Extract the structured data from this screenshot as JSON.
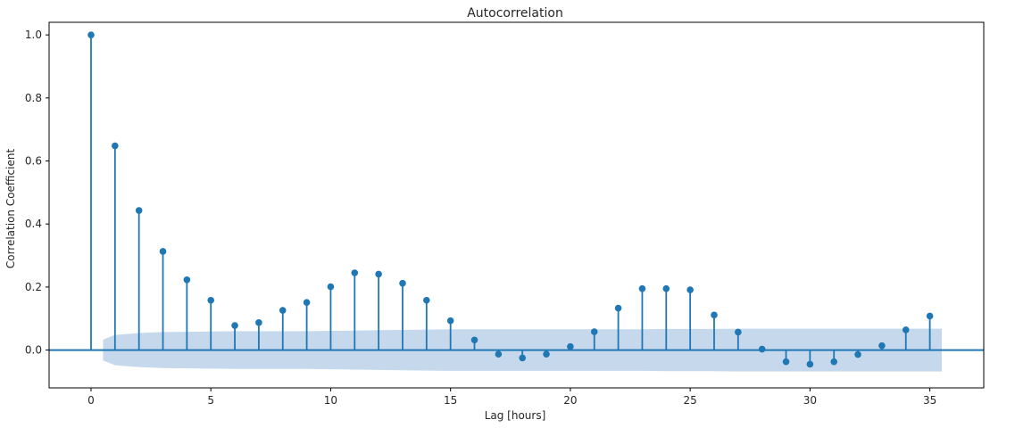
{
  "chart_data": {
    "type": "scatter",
    "subtype": "stem",
    "title": "Autocorrelation",
    "xlabel": "Lag [hours]",
    "ylabel": "Correlation Coefficient",
    "xlim": [
      -1.75,
      37.25
    ],
    "ylim": [
      -0.12,
      1.04
    ],
    "x_ticks": [
      0,
      5,
      10,
      15,
      20,
      25,
      30,
      35
    ],
    "y_ticks": [
      0.0,
      0.2,
      0.4,
      0.6,
      0.8,
      1.0
    ],
    "y_tick_labels": [
      "0.0",
      "0.2",
      "0.4",
      "0.6",
      "0.8",
      "1.0"
    ],
    "grid": false,
    "colors": {
      "series": "#1f77b4",
      "band": "#c6d9ec",
      "axis": "#000000"
    },
    "series": [
      {
        "x": [
          0,
          1,
          2,
          3,
          4,
          5,
          6,
          7,
          8,
          9,
          10,
          11,
          12,
          13,
          14,
          15,
          16,
          17,
          18,
          19,
          20,
          21,
          22,
          23,
          24,
          25,
          26,
          27,
          28,
          29,
          30,
          31,
          32,
          33,
          34,
          35
        ],
        "values": [
          1.0,
          0.648,
          0.443,
          0.313,
          0.223,
          0.158,
          0.078,
          0.087,
          0.126,
          0.151,
          0.201,
          0.245,
          0.241,
          0.212,
          0.158,
          0.093,
          0.032,
          -0.013,
          -0.025,
          -0.013,
          0.011,
          0.058,
          0.133,
          0.195,
          0.195,
          0.191,
          0.111,
          0.057,
          0.003,
          -0.037,
          -0.045,
          -0.037,
          -0.014,
          0.014,
          0.064,
          0.108
        ]
      }
    ],
    "confidence_band": {
      "x": [
        0.5,
        1,
        2,
        3,
        4,
        5,
        6,
        7,
        8,
        9,
        10,
        11,
        12,
        13,
        14,
        15,
        16,
        17,
        18,
        19,
        20,
        21,
        22,
        23,
        24,
        25,
        26,
        27,
        28,
        29,
        30,
        31,
        32,
        33,
        34,
        35,
        35.5
      ],
      "upper": [
        0.033,
        0.048,
        0.054,
        0.057,
        0.058,
        0.059,
        0.06,
        0.06,
        0.06,
        0.06,
        0.061,
        0.062,
        0.063,
        0.064,
        0.065,
        0.066,
        0.066,
        0.066,
        0.066,
        0.066,
        0.066,
        0.066,
        0.066,
        0.066,
        0.067,
        0.067,
        0.067,
        0.068,
        0.068,
        0.068,
        0.068,
        0.068,
        0.068,
        0.068,
        0.068,
        0.068,
        0.068
      ]
    }
  }
}
